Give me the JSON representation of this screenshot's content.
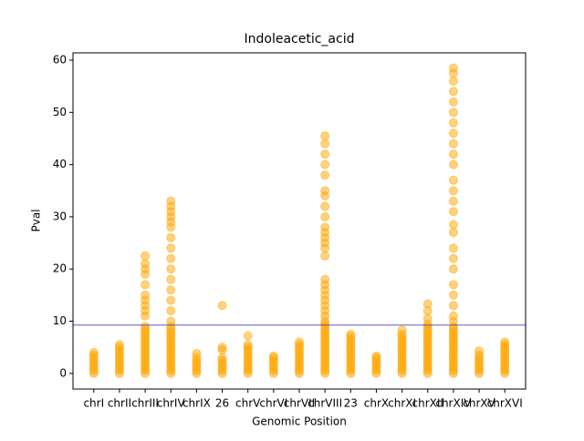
{
  "chart_data": {
    "type": "strip",
    "title": "Indoleacetic_acid",
    "x_label": "Genomic Position",
    "y_label": "Pval",
    "categories": [
      "chrI",
      "chrII",
      "chrIII",
      "chrIV",
      "chrIX",
      "26",
      "chrV",
      "chrVI",
      "chrVII",
      "chrVIII",
      "23",
      "chrX",
      "chrXI",
      "chrXII",
      "chrXIV",
      "chrXV",
      "chrXVI"
    ],
    "color": "orange",
    "values": [
      [
        0,
        0.5,
        1,
        1.5,
        2,
        2.5,
        3,
        3.5,
        4
      ],
      [
        0,
        0.5,
        1,
        1.5,
        2,
        2.5,
        3,
        3.5,
        4,
        4.5,
        5,
        5.5
      ],
      [
        0,
        0.5,
        1,
        1.5,
        2,
        2.5,
        3,
        3.5,
        4,
        4.5,
        5,
        5.5,
        6,
        6.5,
        7,
        7.5,
        8,
        8.5,
        9,
        11,
        12,
        13,
        14,
        15,
        17,
        19,
        20,
        21,
        22.5
      ],
      [
        0,
        0.5,
        1,
        1.5,
        2,
        2.5,
        3,
        3.5,
        4,
        4.5,
        5,
        5.5,
        6,
        6.5,
        7,
        7.5,
        8,
        8.5,
        9,
        10,
        12,
        14,
        16,
        18,
        20,
        22,
        24,
        26,
        28,
        29,
        30,
        31,
        32,
        33
      ],
      [
        0,
        0.5,
        1,
        1.5,
        2,
        2.5,
        3,
        3.8
      ],
      [
        0,
        0.5,
        1,
        1.5,
        2,
        2.5,
        3,
        4.5,
        5,
        13
      ],
      [
        0,
        0.5,
        1,
        1.5,
        2,
        2.5,
        3,
        3.5,
        4,
        4.5,
        5,
        5.5,
        7.2
      ],
      [
        0,
        0.5,
        1,
        1.5,
        2,
        2.5,
        3,
        3.3
      ],
      [
        0,
        0.5,
        1,
        1.5,
        2,
        2.5,
        3,
        3.5,
        4,
        4.5,
        5,
        5.5,
        6
      ],
      [
        0,
        0.5,
        1,
        1.5,
        2,
        2.5,
        3,
        3.5,
        4,
        4.5,
        5,
        5.5,
        6,
        6.5,
        7,
        7.5,
        8,
        8.5,
        9,
        9.5,
        10,
        11,
        12,
        13,
        14,
        15,
        16,
        17,
        18,
        22.5,
        24,
        25,
        26,
        27,
        28,
        30,
        32,
        34,
        35,
        38,
        40,
        42,
        44,
        45.5
      ],
      [
        0,
        0.5,
        1,
        1.5,
        2,
        2.5,
        3,
        3.5,
        4,
        4.5,
        5,
        5.5,
        6,
        6.5,
        7,
        7.5
      ],
      [
        0,
        0.5,
        1,
        1.5,
        2,
        2.5,
        3,
        3.3
      ],
      [
        0,
        0.5,
        1,
        1.5,
        2,
        2.5,
        3,
        3.5,
        4,
        4.5,
        5,
        5.5,
        6,
        6.5,
        7,
        7.5,
        8.3
      ],
      [
        0,
        0.5,
        1,
        1.5,
        2,
        2.5,
        3,
        3.5,
        4,
        4.5,
        5,
        5.5,
        6,
        6.5,
        7,
        7.5,
        8,
        8.5,
        9,
        9.5,
        10.5,
        12,
        13.3
      ],
      [
        0,
        0.5,
        1,
        1.5,
        2,
        2.5,
        3,
        3.5,
        4,
        4.5,
        5,
        5.5,
        6,
        6.5,
        7,
        7.5,
        8,
        8.5,
        9,
        10,
        11,
        13,
        15,
        17,
        20,
        22,
        24,
        27,
        28.5,
        31,
        33,
        35,
        37,
        40,
        42,
        44,
        46,
        48,
        50,
        52,
        54,
        56,
        57.5,
        58.5
      ],
      [
        0,
        0.5,
        1,
        1.5,
        2,
        2.5,
        3,
        3.5,
        4.3
      ],
      [
        0,
        0.5,
        1,
        1.5,
        2,
        2.5,
        3,
        3.5,
        4,
        4.5,
        5,
        5.5,
        6
      ]
    ],
    "threshold": 9.25,
    "threshold_color": "#4444bb",
    "ylim": [
      -3,
      61.4
    ],
    "yticks": [
      0,
      10,
      20,
      30,
      40,
      50,
      60
    ],
    "grid": false
  }
}
